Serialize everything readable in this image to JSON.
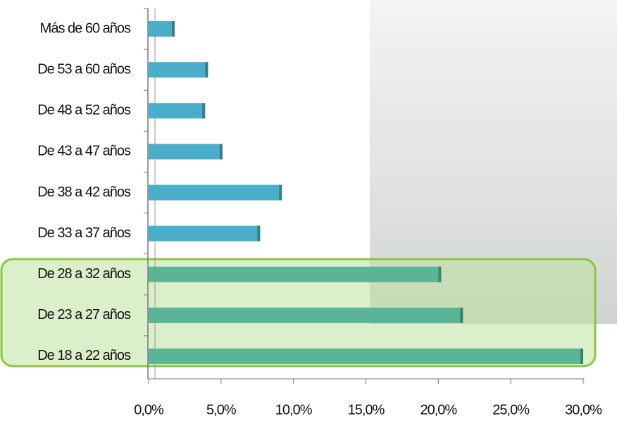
{
  "chart_data": {
    "type": "hbar",
    "categories": [
      "Más de 60 años",
      "De 53 a 60 años",
      "De 48 a 52 años",
      "De 43 a 47 años",
      "De 38 a 42 años",
      "De 33 a 37 años",
      "De 28 a 32 años",
      "De 23 a 27 años",
      "De 18 a 22 años"
    ],
    "values": [
      1.8,
      4.1,
      3.9,
      5.1,
      9.2,
      7.7,
      20.2,
      21.7,
      30.0
    ],
    "colors": [
      "#4aaecb",
      "#4aaecb",
      "#4aaecb",
      "#4aaecb",
      "#4aaecb",
      "#4aaecb",
      "#5bb496",
      "#5bb496",
      "#5bb496"
    ],
    "xlim": [
      0,
      30
    ],
    "xticks": [
      {
        "value": 0,
        "label": "0,0%"
      },
      {
        "value": 5,
        "label": "5,0%"
      },
      {
        "value": 10,
        "label": "10,0%"
      },
      {
        "value": 15,
        "label": "15,0%"
      },
      {
        "value": 20,
        "label": "20,0%"
      },
      {
        "value": 25,
        "label": "25,0%"
      },
      {
        "value": 30,
        "label": "30,0%"
      }
    ]
  }
}
